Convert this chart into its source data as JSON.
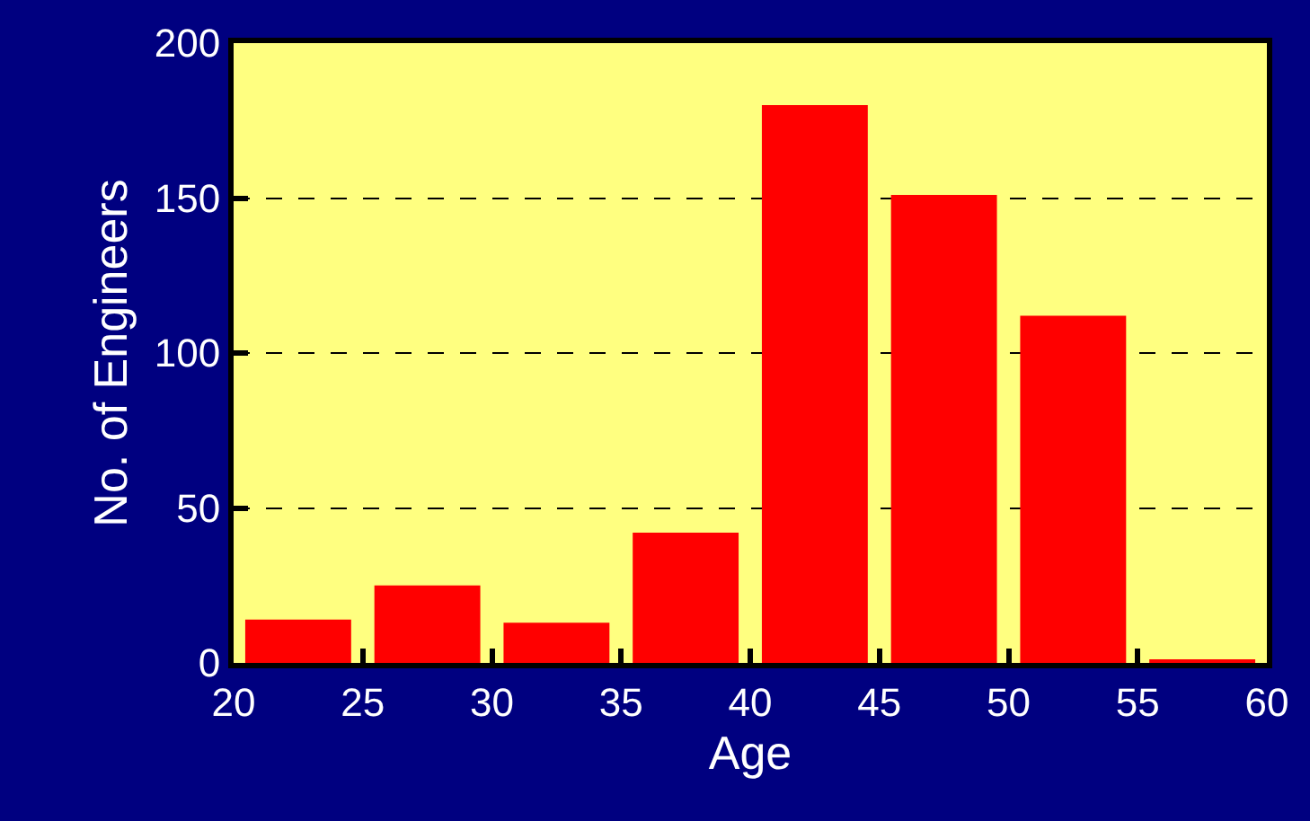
{
  "chart_data": {
    "type": "histogram",
    "xlabel": "Age",
    "ylabel": "No. of Engineers",
    "bins": [
      20,
      25,
      30,
      35,
      40,
      45,
      50,
      55,
      60
    ],
    "values": [
      14,
      25,
      13,
      42,
      180,
      151,
      112,
      1
    ],
    "color": "#ff0000",
    "xlim": [
      20,
      60
    ],
    "xticks": [
      20,
      25,
      30,
      35,
      40,
      45,
      50,
      55,
      60
    ],
    "ylim": [
      0,
      200
    ],
    "yticks": [
      0,
      50,
      100,
      150,
      200
    ],
    "grid": "y",
    "legend": false
  }
}
